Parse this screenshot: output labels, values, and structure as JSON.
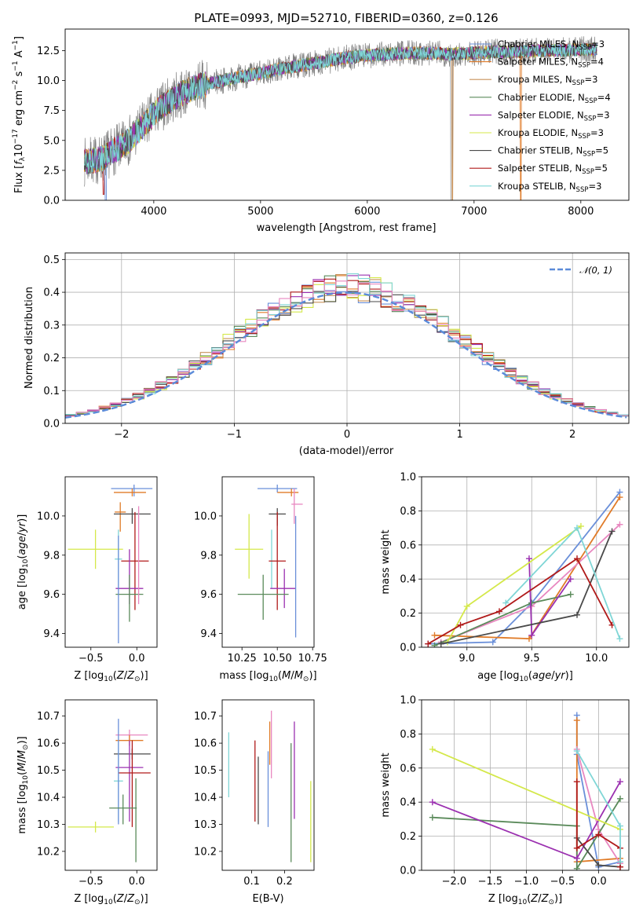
{
  "chart_data": [
    {
      "type": "line",
      "title": "PLATE=0993, MJD=52710, FIBERID=0360, z=0.126",
      "xlabel": "wavelength [Angstrom, rest frame]",
      "ylabel": "Flux [f_λ 10^-17 erg cm^-2 s^-1 A^-1]",
      "xlim": [
        3170,
        8450
      ],
      "ylim": [
        0,
        14.3
      ],
      "xticks": [
        "4000",
        "5000",
        "6000",
        "7000",
        "8000"
      ],
      "yticks": [
        "0.0",
        "2.5",
        "5.0",
        "7.5",
        "10.0",
        "12.5"
      ],
      "legend_position": "upper right",
      "spectrum_anchors": {
        "x": [
          3350,
          3500,
          3600,
          3700,
          3800,
          3900,
          4000,
          4100,
          4200,
          4300,
          4400,
          4600,
          4800,
          5000,
          5200,
          5400,
          5600,
          5800,
          6000,
          6200,
          6400,
          6600,
          6800,
          7000,
          7200,
          7400,
          7600,
          7800,
          8000,
          8150
        ],
        "y": [
          3.2,
          3.4,
          4.0,
          4.5,
          5.3,
          6.2,
          7.2,
          8.0,
          8.6,
          9.1,
          9.5,
          9.9,
          10.3,
          10.6,
          11.0,
          11.3,
          11.6,
          11.9,
          12.1,
          12.2,
          12.3,
          12.3,
          12.2,
          12.3,
          12.4,
          12.4,
          12.5,
          12.5,
          12.6,
          12.6
        ]
      },
      "series": [
        {
          "name": "Chabrier MILES, N_SSP=3",
          "label_main": "Chabrier MILES, N",
          "label_sub": "SSP",
          "label_tail": "=3",
          "color": "#6a8fd9"
        },
        {
          "name": "Salpeter MILES, N_SSP=4",
          "label_main": "Salpeter MILES, N",
          "label_sub": "SSP",
          "label_tail": "=4",
          "color": "#e07b28"
        },
        {
          "name": "Kroupa MILES, N_SSP=3",
          "label_main": "Kroupa MILES, N",
          "label_sub": "SSP",
          "label_tail": "=3",
          "color": "#c8925a"
        },
        {
          "name": "Chabrier ELODIE, N_SSP=4",
          "label_main": "Chabrier ELODIE, N",
          "label_sub": "SSP",
          "label_tail": "=4",
          "color": "#5a8a5a"
        },
        {
          "name": "Salpeter ELODIE, N_SSP=3",
          "label_main": "Salpeter ELODIE, N",
          "label_sub": "SSP",
          "label_tail": "=3",
          "color": "#9b30b0"
        },
        {
          "name": "Kroupa ELODIE, N_SSP=3",
          "label_main": "Kroupa ELODIE, N",
          "label_sub": "SSP",
          "label_tail": "=3",
          "color": "#d4e84a"
        },
        {
          "name": "Chabrier STELIB, N_SSP=5",
          "label_main": "Chabrier STELIB, N",
          "label_sub": "SSP",
          "label_tail": "=5",
          "color": "#4a4a4a"
        },
        {
          "name": "Salpeter STELIB, N_SSP=5",
          "label_main": "Salpeter STELIB, N",
          "label_sub": "SSP",
          "label_tail": "=5",
          "color": "#b01a1a"
        },
        {
          "name": "Kroupa STELIB, N_SSP=3",
          "label_main": "Kroupa STELIB, N",
          "label_sub": "SSP",
          "label_tail": "=3",
          "color": "#7fd6d6"
        }
      ],
      "data_color": "#808080"
    },
    {
      "type": "line",
      "title": "",
      "xlabel": "(data-model)/error",
      "ylabel": "Normed distribution",
      "xlim": [
        -2.5,
        2.5
      ],
      "ylim": [
        0,
        0.52
      ],
      "xticks": [
        "−2",
        "−1",
        "0",
        "1",
        "2"
      ],
      "yticks": [
        "0.0",
        "0.1",
        "0.2",
        "0.3",
        "0.4",
        "0.5"
      ],
      "grid": true,
      "legend_position": "upper right",
      "legend_label": "𝒩(0, 1)",
      "curve_color": "#5b8bd9",
      "bin_width": 0.1
    },
    {
      "type": "scatter",
      "xlabel": "Z [log10(Z/Z⊙)]",
      "ylabel": "age  [log10(age/yr)]",
      "xlim": [
        -0.78,
        0.22
      ],
      "ylim": [
        9.33,
        10.2
      ],
      "xticks": [
        "−0.5",
        "0.0"
      ],
      "yticks": [
        "9.4",
        "9.6",
        "9.8",
        "10.0"
      ],
      "points": [
        {
          "x": -0.03,
          "y": 10.14,
          "xlo": 0.25,
          "xhi": 0.2,
          "ylo": 0.04,
          "yhi": 0.02,
          "color": "#6a8fd9"
        },
        {
          "x": -0.05,
          "y": 10.12,
          "xlo": 0.2,
          "xhi": 0.15,
          "ylo": 0.02,
          "yhi": 0.02,
          "color": "#e07b28"
        },
        {
          "x": -0.18,
          "y": 10.02,
          "xlo": 0.06,
          "xhi": 0.06,
          "ylo": 0.1,
          "yhi": 0.05,
          "color": "#e07b28"
        },
        {
          "x": -0.05,
          "y": 10.01,
          "xlo": 0.2,
          "xhi": 0.2,
          "ylo": 0.05,
          "yhi": 0.03,
          "color": "#4a4a4a"
        },
        {
          "x": -0.45,
          "y": 9.83,
          "xlo": 0.3,
          "xhi": 0.3,
          "ylo": 0.1,
          "yhi": 0.1,
          "color": "#d4e84a"
        },
        {
          "x": -0.2,
          "y": 9.78,
          "xlo": 0.04,
          "xhi": 0.04,
          "ylo": 0.15,
          "yhi": 0.15,
          "color": "#7fd6d6"
        },
        {
          "x": -0.02,
          "y": 9.77,
          "xlo": 0.15,
          "xhi": 0.15,
          "ylo": 0.25,
          "yhi": 0.25,
          "color": "#b01a1a"
        },
        {
          "x": -0.08,
          "y": 9.63,
          "xlo": 0.15,
          "xhi": 0.15,
          "ylo": 0.08,
          "yhi": 0.2,
          "color": "#9b30b0"
        },
        {
          "x": -0.08,
          "y": 9.6,
          "xlo": 0.15,
          "xhi": 0.15,
          "ylo": 0.14,
          "yhi": 0.1,
          "color": "#5a8a5a"
        },
        {
          "x": -0.2,
          "y": 9.6,
          "xlo": 0.0,
          "xhi": 0.0,
          "ylo": 0.25,
          "yhi": 0.3,
          "color": "#6a8fd9"
        },
        {
          "x": 0.02,
          "y": 9.85,
          "xlo": 0.0,
          "xhi": 0.0,
          "ylo": 0.3,
          "yhi": 0.2,
          "color": "#e887c0"
        }
      ]
    },
    {
      "type": "scatter",
      "xlabel": "mass [log10(M/M⊙)]",
      "ylabel": "",
      "xlim": [
        10.11,
        10.76
      ],
      "ylim": [
        9.33,
        10.2
      ],
      "xticks": [
        "10.25",
        "10.50",
        "10.75"
      ],
      "yticks": [
        "9.4",
        "9.6",
        "9.8",
        "10.0"
      ],
      "points": [
        {
          "x": 10.5,
          "y": 10.14,
          "xlo": 0.14,
          "xhi": 0.14,
          "ylo": 0.02,
          "yhi": 0.02,
          "color": "#6a8fd9"
        },
        {
          "x": 10.6,
          "y": 10.12,
          "xlo": 0.1,
          "xhi": 0.05,
          "ylo": 0.02,
          "yhi": 0.02,
          "color": "#e07b28"
        },
        {
          "x": 10.62,
          "y": 10.06,
          "xlo": 0.02,
          "xhi": 0.06,
          "ylo": 0.1,
          "yhi": 0.08,
          "color": "#e887c0"
        },
        {
          "x": 10.5,
          "y": 10.01,
          "xlo": 0.06,
          "xhi": 0.06,
          "ylo": 0.06,
          "yhi": 0.03,
          "color": "#4a4a4a"
        },
        {
          "x": 10.3,
          "y": 9.83,
          "xlo": 0.1,
          "xhi": 0.1,
          "ylo": 0.15,
          "yhi": 0.18,
          "color": "#d4e84a"
        },
        {
          "x": 10.46,
          "y": 9.78,
          "xlo": 0.0,
          "xhi": 0.0,
          "ylo": 0.15,
          "yhi": 0.15,
          "color": "#7fd6d6"
        },
        {
          "x": 10.5,
          "y": 9.77,
          "xlo": 0.06,
          "xhi": 0.06,
          "ylo": 0.25,
          "yhi": 0.25,
          "color": "#b01a1a"
        },
        {
          "x": 10.55,
          "y": 9.63,
          "xlo": 0.1,
          "xhi": 0.08,
          "ylo": 0.1,
          "yhi": 0.1,
          "color": "#9b30b0"
        },
        {
          "x": 10.4,
          "y": 9.6,
          "xlo": 0.18,
          "xhi": 0.18,
          "ylo": 0.13,
          "yhi": 0.1,
          "color": "#5a8a5a"
        },
        {
          "x": 10.63,
          "y": 9.6,
          "xlo": 0.0,
          "xhi": 0.0,
          "ylo": 0.22,
          "yhi": 0.4,
          "color": "#6a8fd9"
        }
      ]
    },
    {
      "type": "line",
      "xlabel": "age  [log10(age/yr)]",
      "ylabel": "mass weight",
      "xlim": [
        8.65,
        10.25
      ],
      "ylim": [
        0,
        1.0
      ],
      "xticks": [
        "9.0",
        "9.5",
        "10.0"
      ],
      "yticks": [
        "0.0",
        "0.2",
        "0.4",
        "0.6",
        "0.8",
        "1.0"
      ],
      "grid": true,
      "series": [
        {
          "color": "#6a8fd9",
          "x": [
            8.7,
            9.2,
            9.5,
            10.18
          ],
          "y": [
            0.02,
            0.03,
            0.26,
            0.91
          ]
        },
        {
          "color": "#e07b28",
          "x": [
            8.75,
            9.48,
            10.18
          ],
          "y": [
            0.07,
            0.05,
            0.88
          ]
        },
        {
          "color": "#e887c0",
          "x": [
            8.8,
            9.5,
            10.18
          ],
          "y": [
            0.03,
            0.24,
            0.72
          ]
        },
        {
          "color": "#5a8a5a",
          "x": [
            8.75,
            9.5,
            9.8
          ],
          "y": [
            0.01,
            0.26,
            0.31
          ]
        },
        {
          "color": "#9b30b0",
          "x": [
            9.48,
            9.5,
            9.8
          ],
          "y": [
            0.52,
            0.07,
            0.4
          ]
        },
        {
          "color": "#d4e84a",
          "x": [
            8.85,
            9.0,
            9.88
          ],
          "y": [
            0.03,
            0.24,
            0.71
          ]
        },
        {
          "color": "#4a4a4a",
          "x": [
            8.8,
            9.85,
            10.12
          ],
          "y": [
            0.02,
            0.19,
            0.68
          ]
        },
        {
          "color": "#b01a1a",
          "x": [
            8.7,
            8.95,
            9.25,
            9.85,
            10.12
          ],
          "y": [
            0.02,
            0.13,
            0.21,
            0.52,
            0.13
          ]
        },
        {
          "color": "#7fd6d6",
          "x": [
            9.3,
            9.85,
            10.18
          ],
          "y": [
            0.26,
            0.7,
            0.05
          ]
        }
      ]
    },
    {
      "type": "scatter",
      "xlabel": "Z [log10(Z/Z⊙)]",
      "ylabel": "mass [log10(M/M⊙)]",
      "xlim": [
        -0.78,
        0.22
      ],
      "ylim": [
        10.13,
        10.76
      ],
      "xticks": [
        "−0.5",
        "0.0"
      ],
      "yticks": [
        "10.2",
        "10.3",
        "10.4",
        "10.5",
        "10.6",
        "10.7"
      ],
      "points": [
        {
          "x": -0.08,
          "y": 10.63,
          "xlo": 0.15,
          "xhi": 0.2,
          "ylo": 0.02,
          "yhi": 0.02,
          "color": "#e887c0"
        },
        {
          "x": -0.08,
          "y": 10.61,
          "xlo": 0.15,
          "xhi": 0.15,
          "ylo": 0.02,
          "yhi": 0.02,
          "color": "#e07b28"
        },
        {
          "x": -0.05,
          "y": 10.56,
          "xlo": 0.2,
          "xhi": 0.2,
          "ylo": 0.02,
          "yhi": 0.02,
          "color": "#4a4a4a"
        },
        {
          "x": -0.08,
          "y": 10.51,
          "xlo": 0.15,
          "xhi": 0.15,
          "ylo": 0.2,
          "yhi": 0.1,
          "color": "#9b30b0"
        },
        {
          "x": -0.05,
          "y": 10.49,
          "xlo": 0.15,
          "xhi": 0.2,
          "ylo": 0.2,
          "yhi": 0.12,
          "color": "#b01a1a"
        },
        {
          "x": -0.2,
          "y": 10.46,
          "xlo": 0.05,
          "xhi": 0.05,
          "ylo": 0.15,
          "yhi": 0.15,
          "color": "#7fd6d6"
        },
        {
          "x": -0.2,
          "y": 10.55,
          "xlo": 0.0,
          "xhi": 0.0,
          "ylo": 0.25,
          "yhi": 0.14,
          "color": "#6a8fd9"
        },
        {
          "x": -0.15,
          "y": 10.36,
          "xlo": 0.15,
          "xhi": 0.15,
          "ylo": 0.06,
          "yhi": 0.05,
          "color": "#5a8a5a"
        },
        {
          "x": -0.45,
          "y": 10.29,
          "xlo": 0.3,
          "xhi": 0.2,
          "ylo": 0.02,
          "yhi": 0.02,
          "color": "#d4e84a"
        },
        {
          "x": -0.01,
          "y": 10.35,
          "xlo": 0.0,
          "xhi": 0.0,
          "ylo": 0.19,
          "yhi": 0.12,
          "color": "#5a8a5a"
        }
      ]
    },
    {
      "type": "scatter",
      "xlabel": "E(B-V)",
      "ylabel": "",
      "xlim": [
        0.01,
        0.29
      ],
      "ylim": [
        10.13,
        10.76
      ],
      "xticks": [
        "0.1",
        "0.2"
      ],
      "yticks": [
        "10.2",
        "10.3",
        "10.4",
        "10.5",
        "10.6",
        "10.7"
      ],
      "points": [
        {
          "x": 0.03,
          "y": 10.52,
          "xlo": 0,
          "xhi": 0,
          "ylo": 0.12,
          "yhi": 0.12,
          "color": "#7fd6d6"
        },
        {
          "x": 0.11,
          "y": 10.46,
          "xlo": 0,
          "xhi": 0,
          "ylo": 0.15,
          "yhi": 0.15,
          "color": "#b01a1a"
        },
        {
          "x": 0.12,
          "y": 10.45,
          "xlo": 0,
          "xhi": 0,
          "ylo": 0.15,
          "yhi": 0.1,
          "color": "#4a4a4a"
        },
        {
          "x": 0.15,
          "y": 10.43,
          "xlo": 0,
          "xhi": 0,
          "ylo": 0.14,
          "yhi": 0.14,
          "color": "#6a8fd9"
        },
        {
          "x": 0.155,
          "y": 10.6,
          "xlo": 0,
          "xhi": 0,
          "ylo": 0.08,
          "yhi": 0.08,
          "color": "#e07b28"
        },
        {
          "x": 0.16,
          "y": 10.62,
          "xlo": 0,
          "xhi": 0,
          "ylo": 0.15,
          "yhi": 0.1,
          "color": "#e887c0"
        },
        {
          "x": 0.22,
          "y": 10.38,
          "xlo": 0,
          "xhi": 0,
          "ylo": 0.22,
          "yhi": 0.22,
          "color": "#5a8a5a"
        },
        {
          "x": 0.23,
          "y": 10.5,
          "xlo": 0,
          "xhi": 0,
          "ylo": 0.18,
          "yhi": 0.18,
          "color": "#9b30b0"
        },
        {
          "x": 0.28,
          "y": 10.31,
          "xlo": 0,
          "xhi": 0,
          "ylo": 0.15,
          "yhi": 0.15,
          "color": "#d4e84a"
        }
      ]
    },
    {
      "type": "line",
      "xlabel": "Z [log10(Z/Z⊙)]",
      "ylabel": "mass weight",
      "xlim": [
        -2.45,
        0.42
      ],
      "ylim": [
        0,
        1.0
      ],
      "xticks": [
        "−2.0",
        "−1.5",
        "−1.0",
        "−0.5",
        "0.0"
      ],
      "yticks": [
        "0.0",
        "0.2",
        "0.4",
        "0.6",
        "0.8",
        "1.0"
      ],
      "grid": true,
      "series": [
        {
          "color": "#6a8fd9",
          "x": [
            -0.3,
            -0.3,
            0.0,
            0.3
          ],
          "y": [
            0.91,
            0.68,
            0.02,
            0.05
          ]
        },
        {
          "color": "#e07b28",
          "x": [
            -0.3,
            -0.3,
            0.3
          ],
          "y": [
            0.88,
            0.05,
            0.07
          ]
        },
        {
          "color": "#e887c0",
          "x": [
            -0.3,
            0.0,
            0.3
          ],
          "y": [
            0.71,
            0.24,
            0.04
          ]
        },
        {
          "color": "#5a8a5a",
          "x": [
            -2.3,
            -0.3,
            -0.3,
            0.3
          ],
          "y": [
            0.31,
            0.26,
            0.01,
            0.42
          ]
        },
        {
          "color": "#9b30b0",
          "x": [
            -2.3,
            -0.3,
            0.3
          ],
          "y": [
            0.4,
            0.07,
            0.52
          ]
        },
        {
          "color": "#d4e84a",
          "x": [
            -2.3,
            0.3
          ],
          "y": [
            0.71,
            0.24
          ]
        },
        {
          "color": "#4a4a4a",
          "x": [
            -0.3,
            0.0,
            0.3
          ],
          "y": [
            0.19,
            0.03,
            0.02
          ]
        },
        {
          "color": "#b01a1a",
          "x": [
            -0.3,
            -0.3,
            0.0,
            0.3,
            0.3
          ],
          "y": [
            0.52,
            0.13,
            0.21,
            0.13,
            0.02
          ]
        },
        {
          "color": "#7fd6d6",
          "x": [
            -0.3,
            0.3,
            0.3
          ],
          "y": [
            0.7,
            0.26,
            0.05
          ]
        }
      ]
    }
  ]
}
